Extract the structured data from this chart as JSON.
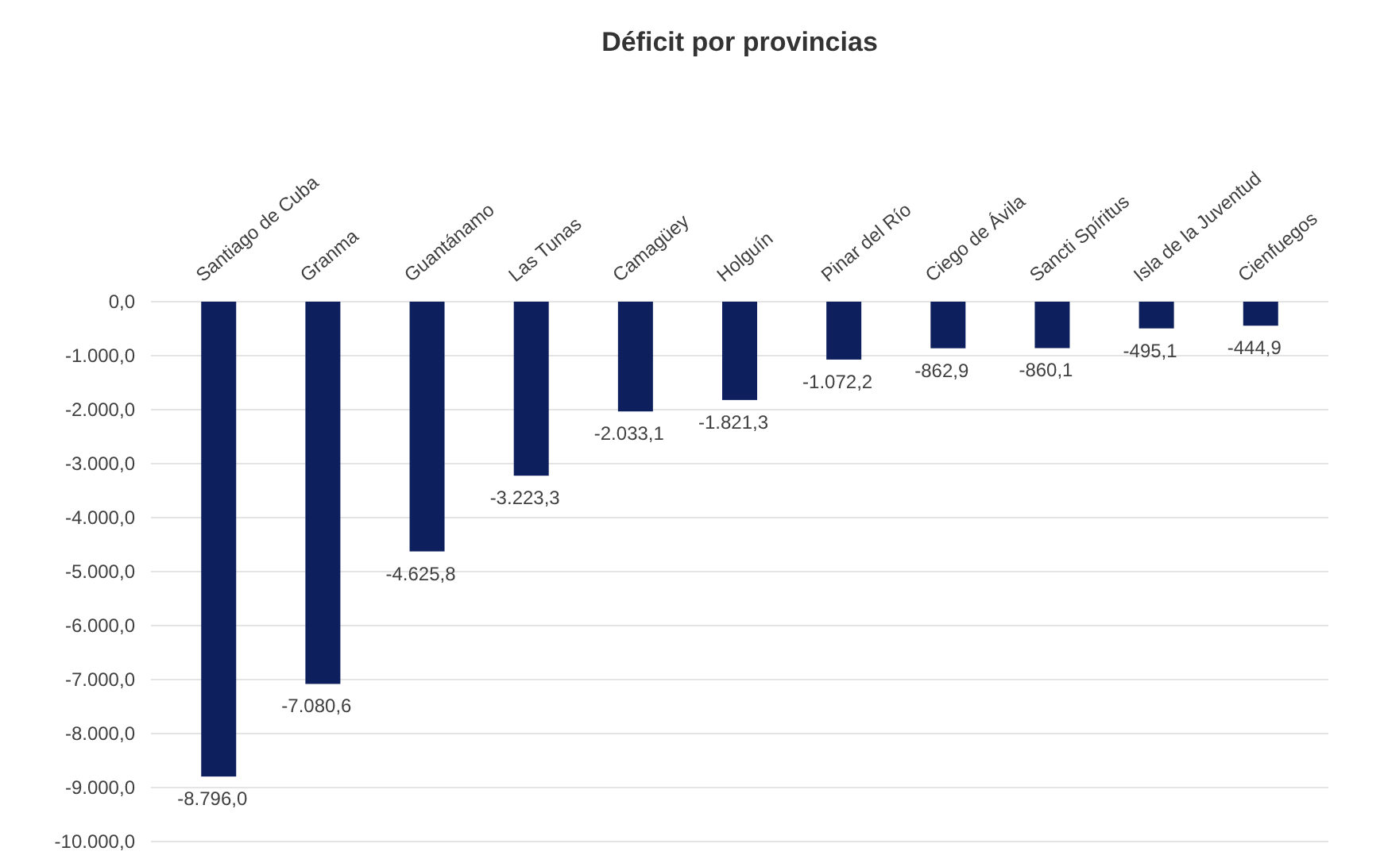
{
  "chart_data": {
    "type": "bar",
    "title": "Déficit por provincias",
    "categories": [
      "Santiago de Cuba",
      "Granma",
      "Guantánamo",
      "Las Tunas",
      "Camagüey",
      "Holguín",
      "Pinar del Río",
      "Ciego de Ávila",
      "Sancti Spíritus",
      "Isla de la Juventud",
      "Cienfuegos"
    ],
    "values": [
      -8796.0,
      -7080.6,
      -4625.8,
      -3223.3,
      -2033.1,
      -1821.3,
      -1072.2,
      -862.9,
      -860.1,
      -495.1,
      -444.9
    ],
    "value_labels": [
      "-8.796,0",
      "-7.080,6",
      "-4.625,8",
      "-3.223,3",
      "-2.033,1",
      "-1.821,3",
      "-1.072,2",
      "-862,9",
      "-860,1",
      "-495,1",
      "-444,9"
    ],
    "color": "#0d1f5c",
    "ylim": [
      -10000,
      0
    ],
    "yticks": [
      {
        "value": 0,
        "label": "0,0"
      },
      {
        "value": -1000,
        "label": "-1.000,0"
      },
      {
        "value": -2000,
        "label": "-2.000,0"
      },
      {
        "value": -3000,
        "label": "-3.000,0"
      },
      {
        "value": -4000,
        "label": "-4.000,0"
      },
      {
        "value": -5000,
        "label": "-5.000,0"
      },
      {
        "value": -6000,
        "label": "-6.000,0"
      },
      {
        "value": -7000,
        "label": "-7.000,0"
      },
      {
        "value": -8000,
        "label": "-8.000,0"
      },
      {
        "value": -9000,
        "label": "-9.000,0"
      },
      {
        "value": -10000,
        "label": "-10.000,0"
      }
    ],
    "grid": "y"
  }
}
